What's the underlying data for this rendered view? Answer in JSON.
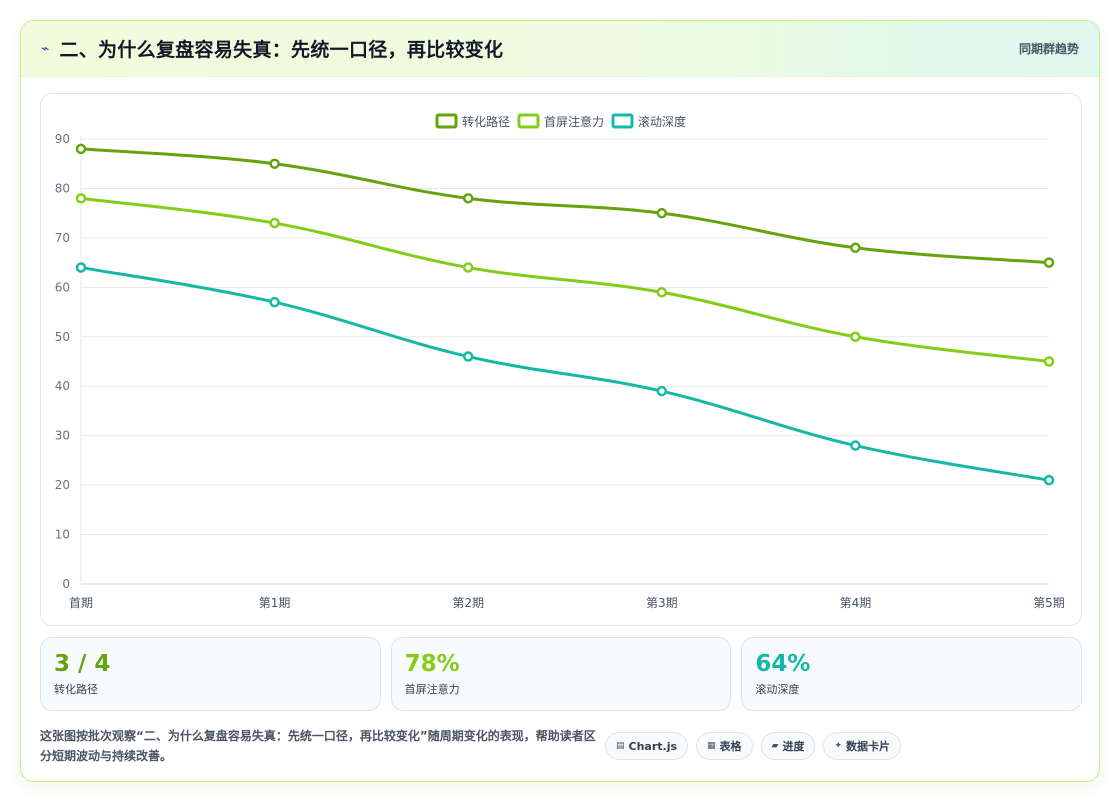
{
  "header": {
    "icon": "bolt-icon",
    "title": "二、为什么复盘容易失真：先统一口径，再比较变化",
    "link": "同期群趋势"
  },
  "chart_data": {
    "type": "line",
    "categories": [
      "首期",
      "第1期",
      "第2期",
      "第3期",
      "第4期",
      "第5期"
    ],
    "ylim": [
      0,
      90
    ],
    "yticks": [
      0,
      10,
      20,
      30,
      40,
      50,
      60,
      70,
      80,
      90
    ],
    "grid": true,
    "legend_position": "top-center",
    "series": [
      {
        "name": "转化路径",
        "color": "#65a30d",
        "values": [
          88,
          85,
          78,
          75,
          68,
          65
        ]
      },
      {
        "name": "首屏注意力",
        "color": "#84cc16",
        "values": [
          78,
          73,
          64,
          59,
          50,
          45
        ]
      },
      {
        "name": "滚动深度",
        "color": "#14b8a6",
        "values": [
          64,
          57,
          46,
          39,
          28,
          21
        ]
      }
    ]
  },
  "stats": [
    {
      "value": "3 / 4",
      "label": "转化路径",
      "color": "#65a30d"
    },
    {
      "value": "78%",
      "label": "首屏注意力",
      "color": "#84cc16"
    },
    {
      "value": "64%",
      "label": "滚动深度",
      "color": "#14b8a6"
    }
  ],
  "footer": {
    "text": "这张图按批次观察“二、为什么复盘容易失真：先统一口径，再比较变化”随周期变化的表现，帮助读者区分短期波动与持续改善。",
    "tags": [
      {
        "icon": "chart-icon",
        "glyph": "▤",
        "label": "Chart.js"
      },
      {
        "icon": "table-icon",
        "glyph": "▦",
        "label": "表格"
      },
      {
        "icon": "progress-icon",
        "glyph": "▰",
        "label": "进度"
      },
      {
        "icon": "sparkle-icon",
        "glyph": "✦",
        "label": "数据卡片"
      }
    ]
  }
}
